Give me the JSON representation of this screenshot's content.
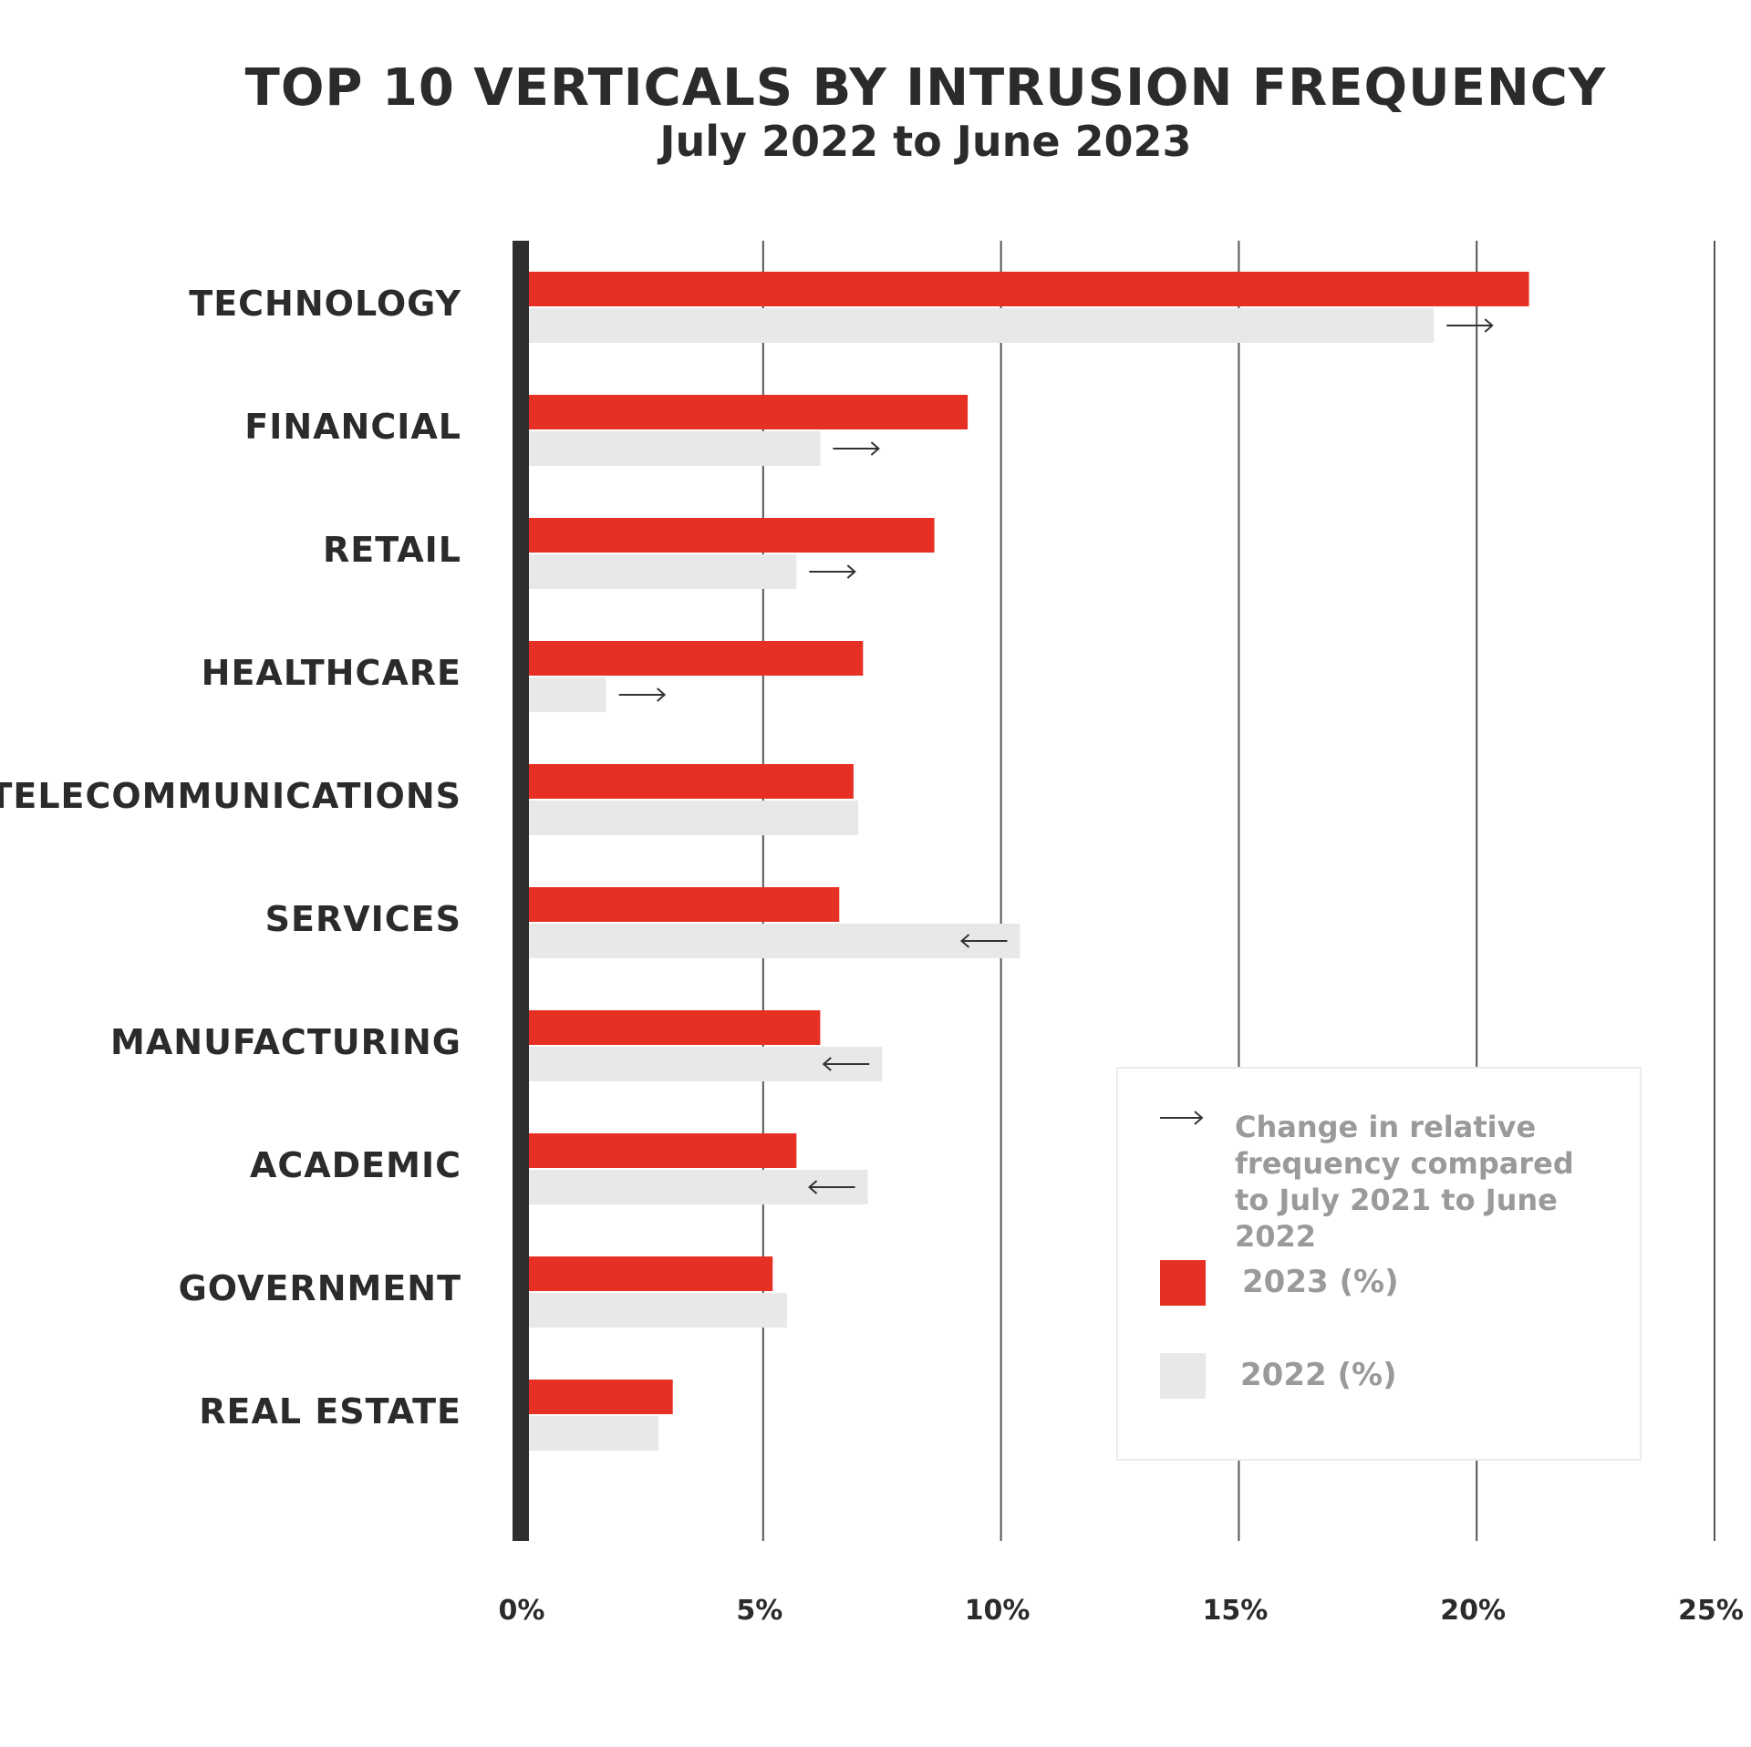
{
  "chart_data": {
    "type": "bar",
    "orientation": "horizontal",
    "title": "TOP 10 VERTICALS BY INTRUSION FREQUENCY",
    "subtitle": "July 2022 to June 2023",
    "categories": [
      "TECHNOLOGY",
      "FINANCIAL",
      "RETAIL",
      "HEALTHCARE",
      "TELECOMMUNICATIONS",
      "SERVICES",
      "MANUFACTURING",
      "ACADEMIC",
      "GOVERNMENT",
      "REAL ESTATE"
    ],
    "series": [
      {
        "name": "2023 (%)",
        "color": "#e63024",
        "values": [
          21.1,
          9.3,
          8.6,
          7.1,
          6.9,
          6.6,
          6.2,
          5.7,
          5.2,
          3.1
        ]
      },
      {
        "name": "2022 (%)",
        "color": "#e8e8e8",
        "values": [
          19.1,
          6.2,
          5.7,
          1.7,
          7.0,
          10.4,
          7.5,
          7.2,
          5.5,
          2.8
        ]
      }
    ],
    "change_direction": [
      "up",
      "up",
      "up",
      "up",
      "",
      "down",
      "down",
      "down",
      "",
      ""
    ],
    "xlim": [
      0,
      25
    ],
    "xticks": [
      0,
      5,
      10,
      15,
      20,
      25
    ],
    "xtick_labels": [
      "0%",
      "5%",
      "10%",
      "15%",
      "20%",
      "25%"
    ],
    "grid": true,
    "legend": {
      "arrow_note": "Change in relative frequency compared to July 2021 to June 2022",
      "position": "bottom-right"
    }
  }
}
